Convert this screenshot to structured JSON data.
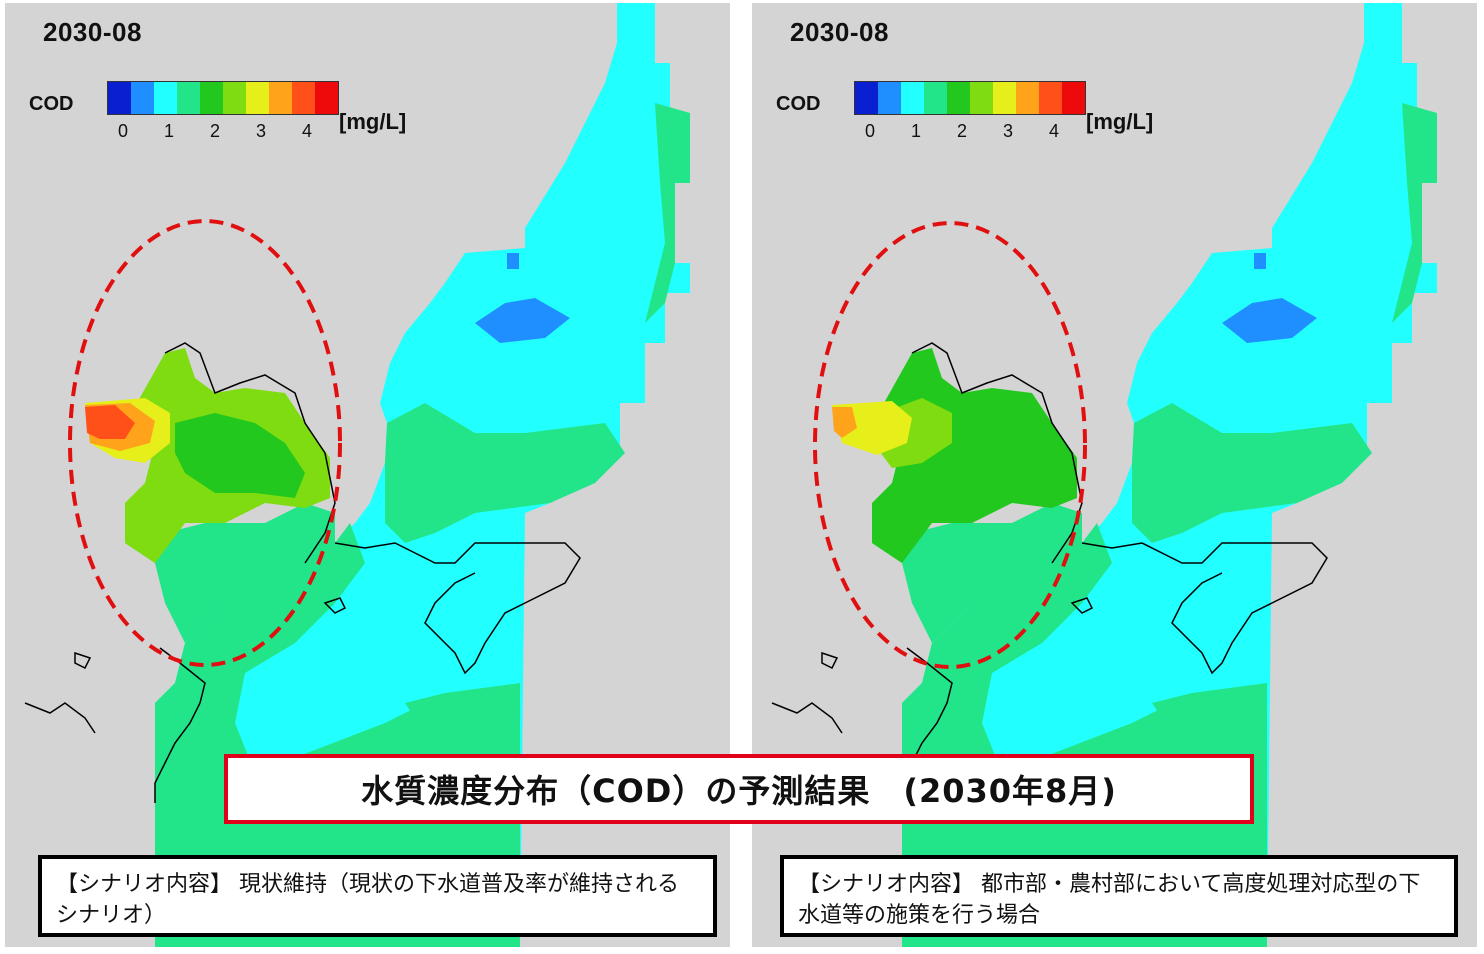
{
  "title": "水質濃度分布（COD）の予測結果　(2030年8月)",
  "legend": {
    "label": "COD",
    "unit": "[mg/L]",
    "ticks": [
      "0",
      "1",
      "2",
      "3",
      "4"
    ],
    "colors": [
      "#0a1fd0",
      "#1f8fff",
      "#22ffff",
      "#22e58a",
      "#22c81e",
      "#7fdc10",
      "#e6ef1a",
      "#ffa41a",
      "#ff501a",
      "#ee0a0a"
    ]
  },
  "colors": {
    "land": "#d4d4d4",
    "highlight_ellipse": "#e01010",
    "title_border": "#e0001a"
  },
  "panels": [
    {
      "date": "2030-08",
      "scenario": "【シナリオ内容】 現状維持（現状の下水道普及率が維持されるシナリオ）",
      "hotspot_max_cod": 4
    },
    {
      "date": "2030-08",
      "scenario": "【シナリオ内容】 都市部・農村部において高度処理対応型の下水道等の施策を行う場合",
      "hotspot_max_cod": 3
    }
  ]
}
